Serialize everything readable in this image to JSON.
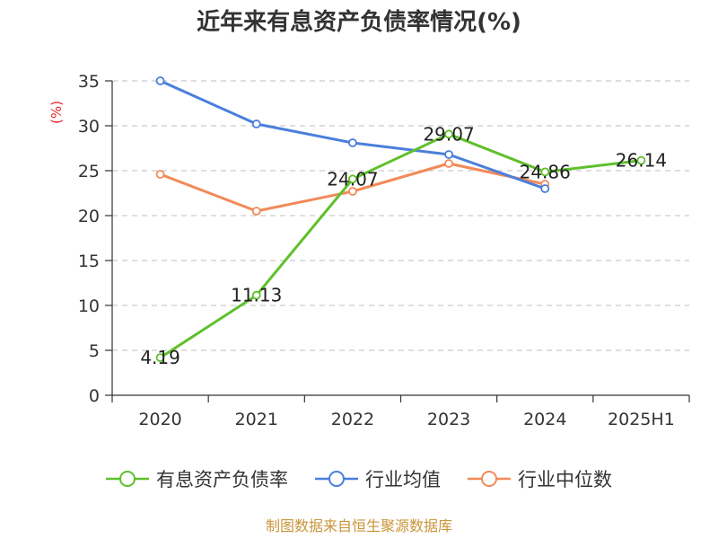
{
  "title": "近年来有息资产负债率情况(%)",
  "source": "制图数据来自恒生聚源数据库",
  "chart_data": {
    "type": "line",
    "title": "近年来有息资产负债率情况(%)",
    "ylabel": "(%)",
    "xlabel": "",
    "categories": [
      "2020",
      "2021",
      "2022",
      "2023",
      "2024",
      "2025H1"
    ],
    "ylim": [
      0,
      35
    ],
    "yticks": [
      0,
      5,
      10,
      15,
      20,
      25,
      30,
      35
    ],
    "grid": true,
    "legend": "bottom",
    "series": [
      {
        "name": "有息资产负债率",
        "color": "#5ec02a",
        "values": [
          4.19,
          11.13,
          24.07,
          29.07,
          24.86,
          26.14
        ],
        "labels": [
          "4.19",
          "11.13",
          "24.07",
          "29.07",
          "24.86",
          "26.14"
        ]
      },
      {
        "name": "行业均值",
        "color": "#4a7fdc",
        "values": [
          35.0,
          30.2,
          28.1,
          26.8,
          23.0,
          null
        ]
      },
      {
        "name": "行业中位数",
        "color": "#f28a58",
        "values": [
          24.6,
          20.5,
          22.7,
          25.8,
          23.5,
          null
        ]
      }
    ]
  }
}
